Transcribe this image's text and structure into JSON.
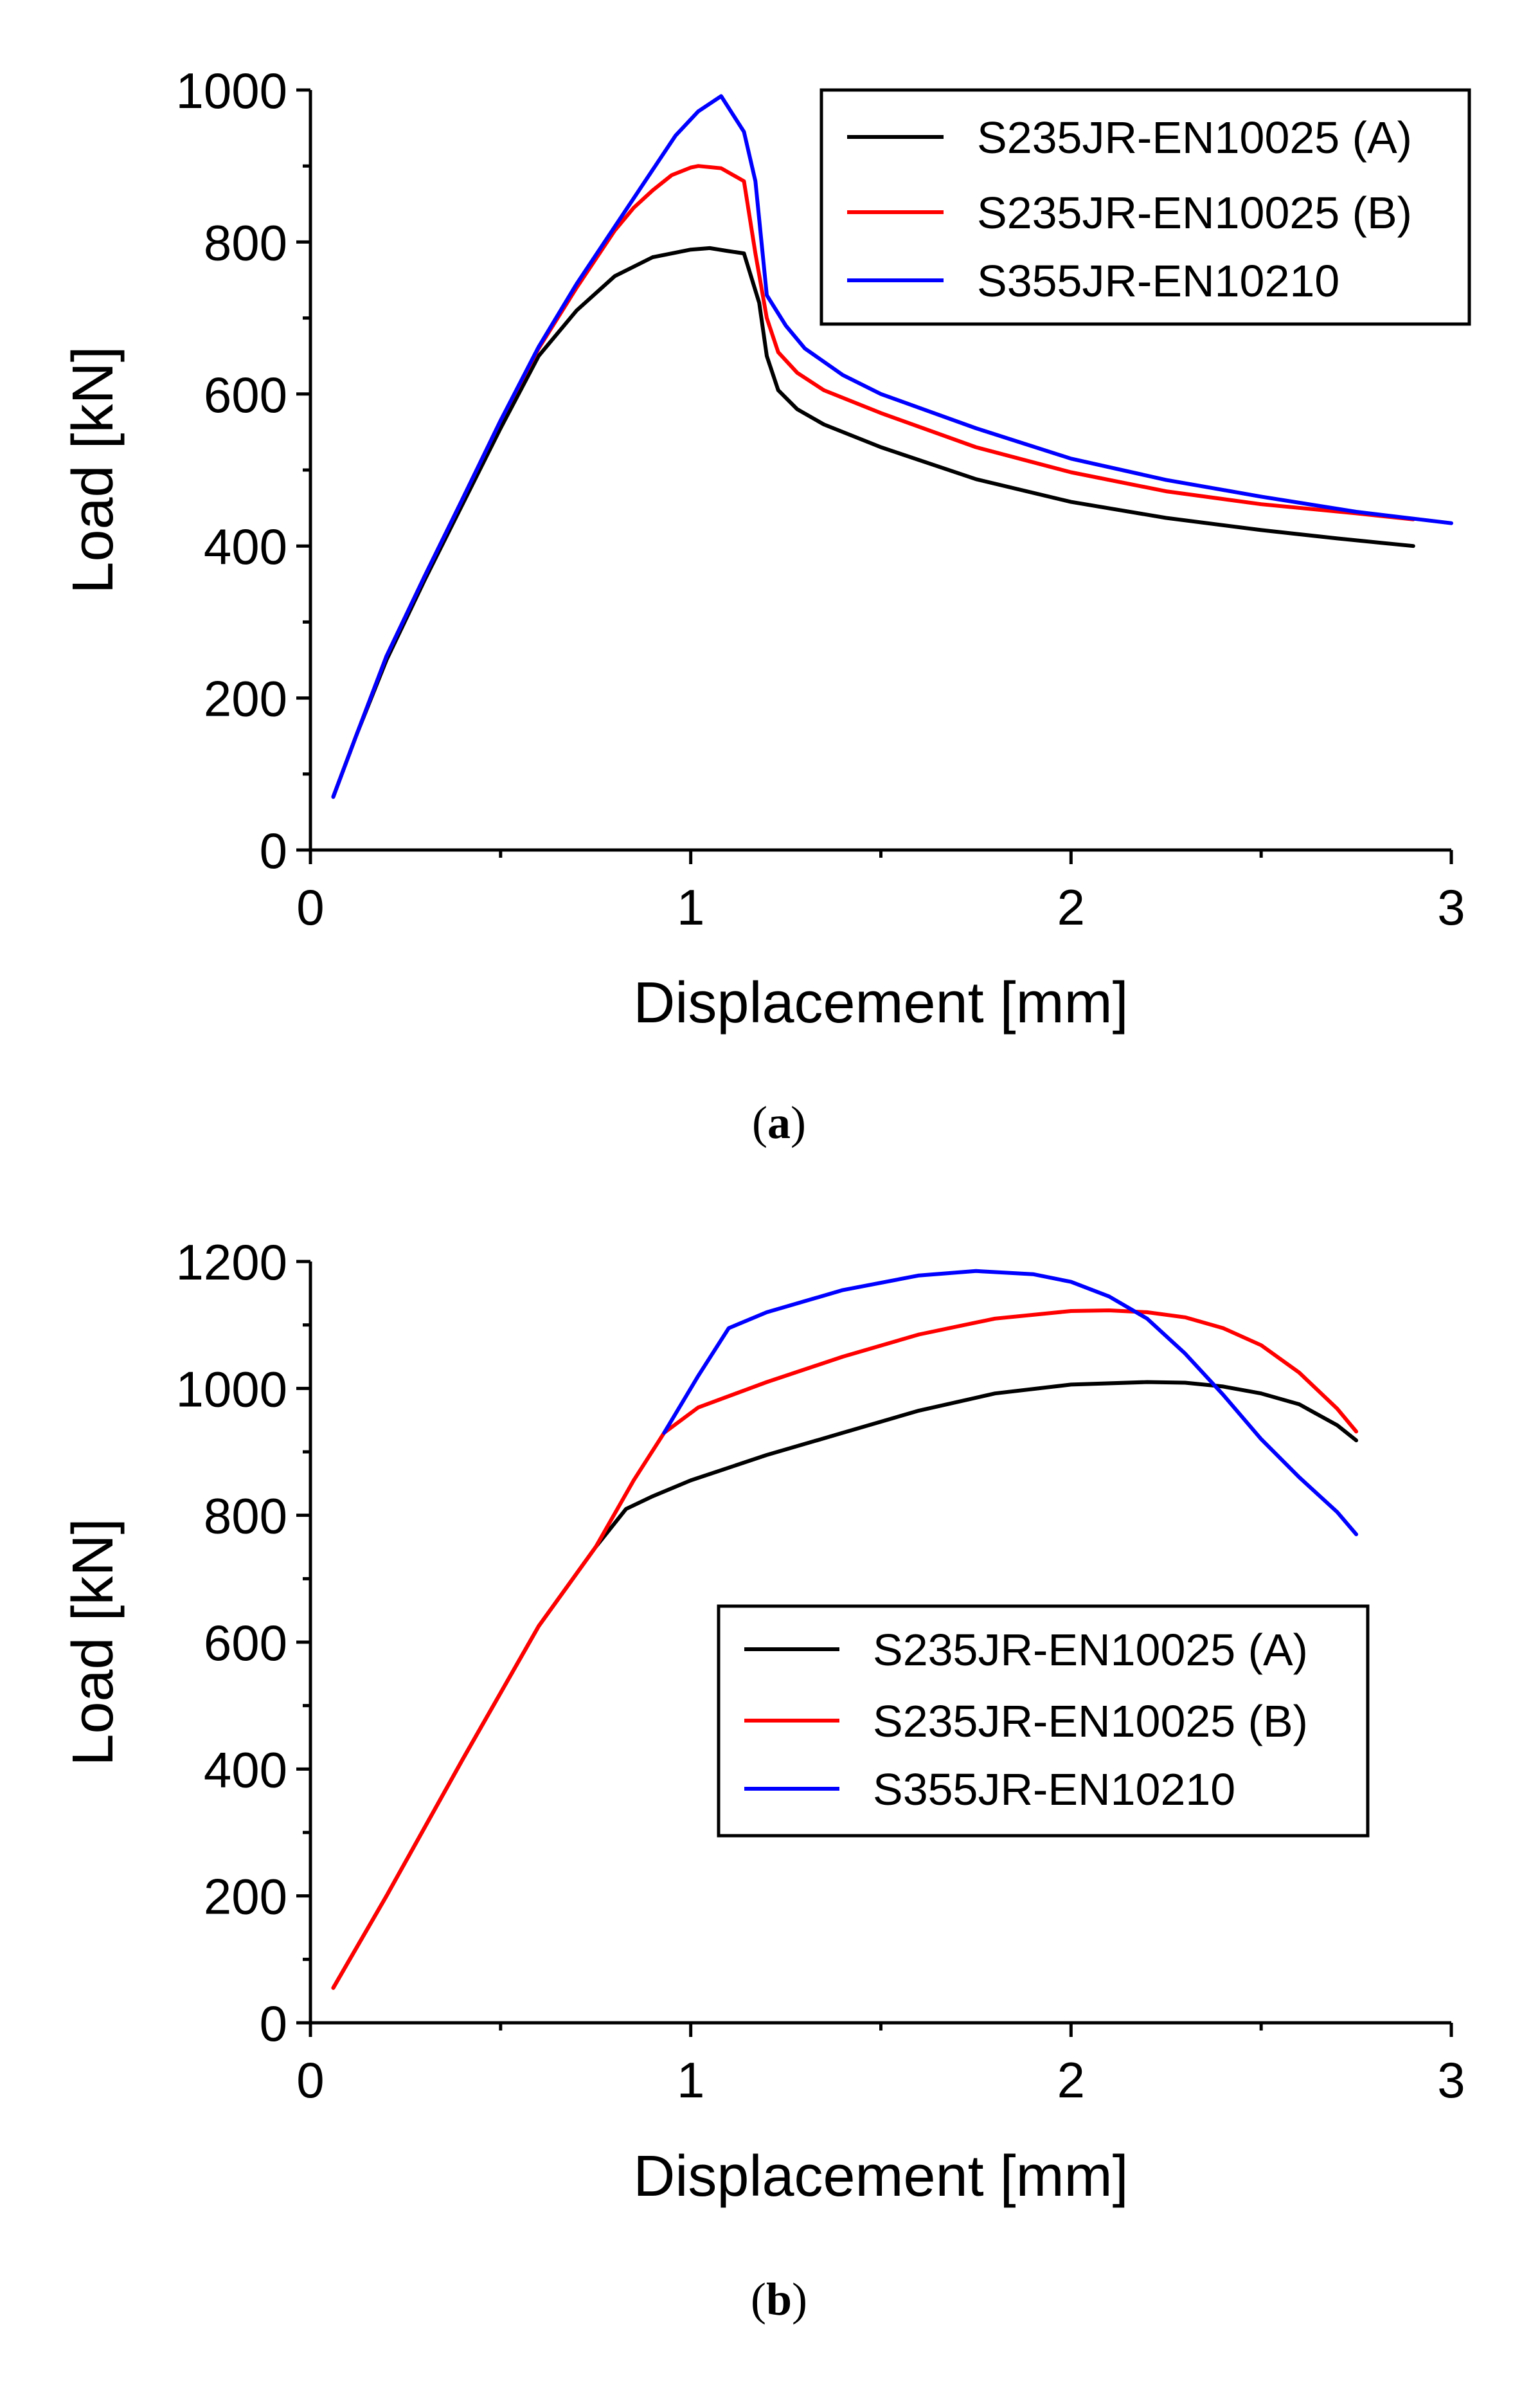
{
  "chart_data": [
    {
      "id": "a",
      "type": "line",
      "caption": {
        "open": "(",
        "letter": "a",
        "close": ")"
      },
      "xlabel": "Displacement [mm]",
      "ylabel": "Load [kN]",
      "xlim": [
        0,
        3
      ],
      "ylim": [
        0,
        1000
      ],
      "xticks": [
        0,
        1,
        2,
        3
      ],
      "yticks": [
        0,
        200,
        400,
        600,
        800,
        1000
      ],
      "legend_position": "top-right",
      "series": [
        {
          "name": "S235JR-EN10025 (A)",
          "color": "#000000",
          "points": [
            [
              0.06,
              70
            ],
            [
              0.12,
              150
            ],
            [
              0.2,
              250
            ],
            [
              0.3,
              355
            ],
            [
              0.4,
              455
            ],
            [
              0.5,
              555
            ],
            [
              0.6,
              650
            ],
            [
              0.7,
              710
            ],
            [
              0.8,
              755
            ],
            [
              0.9,
              780
            ],
            [
              1.0,
              790
            ],
            [
              1.05,
              792
            ],
            [
              1.1,
              788
            ],
            [
              1.14,
              785
            ],
            [
              1.18,
              720
            ],
            [
              1.2,
              650
            ],
            [
              1.23,
              605
            ],
            [
              1.28,
              580
            ],
            [
              1.35,
              560
            ],
            [
              1.5,
              530
            ],
            [
              1.75,
              488
            ],
            [
              2.0,
              458
            ],
            [
              2.25,
              437
            ],
            [
              2.5,
              421
            ],
            [
              2.7,
              410
            ],
            [
              2.9,
              400
            ]
          ]
        },
        {
          "name": "S235JR-EN10025 (B)",
          "color": "#ff0000",
          "points": [
            [
              0.06,
              70
            ],
            [
              0.12,
              150
            ],
            [
              0.2,
              255
            ],
            [
              0.3,
              360
            ],
            [
              0.4,
              462
            ],
            [
              0.5,
              565
            ],
            [
              0.6,
              660
            ],
            [
              0.7,
              740
            ],
            [
              0.8,
              815
            ],
            [
              0.85,
              845
            ],
            [
              0.9,
              868
            ],
            [
              0.95,
              888
            ],
            [
              1.0,
              898
            ],
            [
              1.02,
              900
            ],
            [
              1.08,
              897
            ],
            [
              1.14,
              880
            ],
            [
              1.17,
              785
            ],
            [
              1.2,
              700
            ],
            [
              1.23,
              655
            ],
            [
              1.28,
              628
            ],
            [
              1.35,
              605
            ],
            [
              1.5,
              575
            ],
            [
              1.75,
              530
            ],
            [
              2.0,
              497
            ],
            [
              2.25,
              472
            ],
            [
              2.5,
              455
            ],
            [
              2.75,
              443
            ],
            [
              2.9,
              435
            ]
          ]
        },
        {
          "name": "S355JR-EN10210",
          "color": "#0000ff",
          "points": [
            [
              0.06,
              70
            ],
            [
              0.12,
              150
            ],
            [
              0.2,
              255
            ],
            [
              0.3,
              360
            ],
            [
              0.4,
              462
            ],
            [
              0.5,
              565
            ],
            [
              0.6,
              662
            ],
            [
              0.7,
              745
            ],
            [
              0.8,
              820
            ],
            [
              0.9,
              895
            ],
            [
              0.96,
              940
            ],
            [
              1.02,
              972
            ],
            [
              1.08,
              992
            ],
            [
              1.14,
              945
            ],
            [
              1.17,
              880
            ],
            [
              1.19,
              780
            ],
            [
              1.2,
              730
            ],
            [
              1.25,
              690
            ],
            [
              1.3,
              660
            ],
            [
              1.4,
              625
            ],
            [
              1.5,
              600
            ],
            [
              1.75,
              555
            ],
            [
              2.0,
              515
            ],
            [
              2.25,
              487
            ],
            [
              2.5,
              465
            ],
            [
              2.75,
              445
            ],
            [
              3.0,
              430
            ]
          ]
        }
      ]
    },
    {
      "id": "b",
      "type": "line",
      "caption": {
        "open": "(",
        "letter": "b",
        "close": ")"
      },
      "xlabel": "Displacement [mm]",
      "ylabel": "Load [kN]",
      "xlim": [
        0,
        3
      ],
      "ylim": [
        0,
        1200
      ],
      "xticks": [
        0,
        1,
        2,
        3
      ],
      "yticks": [
        0,
        200,
        400,
        600,
        800,
        1000,
        1200
      ],
      "legend_position": "bottom-right",
      "series": [
        {
          "name": "S235JR-EN10025 (A)",
          "color": "#000000",
          "points": [
            [
              0.06,
              55
            ],
            [
              0.2,
              200
            ],
            [
              0.4,
              415
            ],
            [
              0.6,
              625
            ],
            [
              0.75,
              750
            ],
            [
              0.83,
              810
            ],
            [
              0.9,
              830
            ],
            [
              1.0,
              855
            ],
            [
              1.2,
              895
            ],
            [
              1.4,
              930
            ],
            [
              1.6,
              965
            ],
            [
              1.8,
              992
            ],
            [
              2.0,
              1006
            ],
            [
              2.2,
              1010
            ],
            [
              2.3,
              1009
            ],
            [
              2.4,
              1003
            ],
            [
              2.5,
              992
            ],
            [
              2.6,
              975
            ],
            [
              2.7,
              942
            ],
            [
              2.75,
              918
            ]
          ]
        },
        {
          "name": "S235JR-EN10025 (B)",
          "color": "#ff0000",
          "points": [
            [
              0.06,
              55
            ],
            [
              0.2,
              200
            ],
            [
              0.4,
              415
            ],
            [
              0.6,
              625
            ],
            [
              0.75,
              750
            ],
            [
              0.85,
              855
            ],
            [
              0.93,
              930
            ],
            [
              1.02,
              970
            ],
            [
              1.2,
              1010
            ],
            [
              1.4,
              1050
            ],
            [
              1.6,
              1085
            ],
            [
              1.8,
              1110
            ],
            [
              2.0,
              1122
            ],
            [
              2.1,
              1123
            ],
            [
              2.2,
              1120
            ],
            [
              2.3,
              1112
            ],
            [
              2.4,
              1095
            ],
            [
              2.5,
              1068
            ],
            [
              2.6,
              1025
            ],
            [
              2.7,
              968
            ],
            [
              2.75,
              932
            ]
          ]
        },
        {
          "name": "S355JR-EN10210",
          "color": "#0000ff",
          "points": [
            [
              0.93,
              930
            ],
            [
              1.02,
              1020
            ],
            [
              1.1,
              1095
            ],
            [
              1.2,
              1120
            ],
            [
              1.4,
              1155
            ],
            [
              1.6,
              1178
            ],
            [
              1.75,
              1185
            ],
            [
              1.9,
              1180
            ],
            [
              2.0,
              1168
            ],
            [
              2.1,
              1145
            ],
            [
              2.2,
              1110
            ],
            [
              2.3,
              1055
            ],
            [
              2.4,
              990
            ],
            [
              2.5,
              920
            ],
            [
              2.6,
              860
            ],
            [
              2.7,
              805
            ],
            [
              2.75,
              770
            ]
          ]
        }
      ]
    }
  ]
}
